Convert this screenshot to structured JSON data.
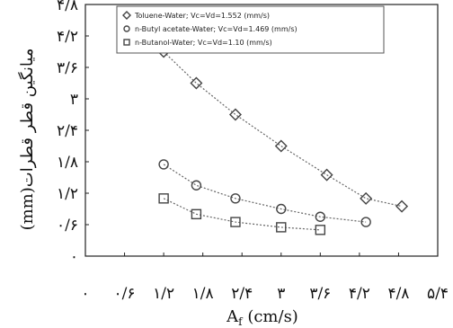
{
  "chart_data": {
    "type": "line",
    "xlabel": "A_f (cm/s)",
    "xlabel_main": "A",
    "xlabel_sub": "f",
    "xlabel_unit": " (cm/s)",
    "ylabel": "میانگین قطر قطرات(mm)",
    "xlim": [
      0,
      5.4
    ],
    "ylim": [
      0,
      4.8
    ],
    "x_ticks": [
      0,
      0.6,
      1.2,
      1.8,
      2.4,
      3,
      3.6,
      4.2,
      4.8,
      5.4
    ],
    "x_tick_labels": [
      "۰",
      "۰/۶",
      "۱/۲",
      "۱/۸",
      "۲/۴",
      "۳",
      "۳/۶",
      "۴/۲",
      "۴/۸",
      "۵/۴"
    ],
    "y_ticks": [
      0,
      0.6,
      1.2,
      1.8,
      2.4,
      3,
      3.6,
      4.2,
      4.8
    ],
    "y_tick_labels": [
      "۰",
      "۰/۶",
      "۱/۲",
      "۱/۸",
      "۲/۴",
      "۳",
      "۳/۶",
      "۴/۲",
      "۴/۸"
    ],
    "grid": false,
    "legend_position": "top",
    "series": [
      {
        "name": "Toluene-Water; Vc=Vd=1.552 (mm/s)",
        "marker": "diamond",
        "x": [
          1.2,
          1.7,
          2.3,
          3.0,
          3.7,
          4.3,
          4.85
        ],
        "y": [
          3.9,
          3.3,
          2.7,
          2.1,
          1.55,
          1.1,
          0.95
        ]
      },
      {
        "name": "n-Butyl acetate-Water; Vc=Vd=1.469 (mm/s)",
        "marker": "circle",
        "x": [
          1.2,
          1.7,
          2.3,
          3.0,
          3.6,
          4.3
        ],
        "y": [
          1.75,
          1.35,
          1.1,
          0.9,
          0.75,
          0.65
        ]
      },
      {
        "name": "n-Butanol-Water; Vc=Vd=1.10 (mm/s)",
        "marker": "square",
        "x": [
          1.2,
          1.7,
          2.3,
          3.0,
          3.6
        ],
        "y": [
          1.1,
          0.8,
          0.65,
          0.55,
          0.5
        ]
      }
    ]
  }
}
